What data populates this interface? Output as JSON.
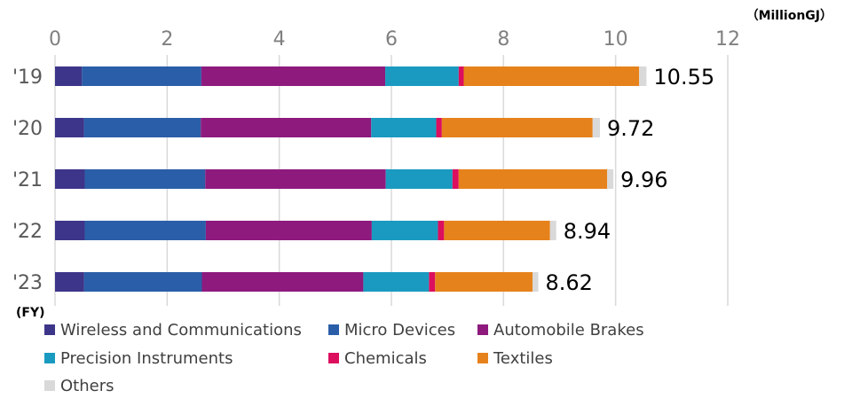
{
  "chart_data": {
    "type": "bar",
    "orientation": "horizontal",
    "stacked": true,
    "unit_label": "（MillionGJ）",
    "category_axis_label": "(FY)",
    "xlim": [
      0,
      12
    ],
    "x_ticks": [
      "0",
      "2",
      "4",
      "6",
      "8",
      "10",
      "12"
    ],
    "categories": [
      "'19",
      "'20",
      "'21",
      "'22",
      "'23"
    ],
    "totals": [
      "10.55",
      "9.72",
      "9.96",
      "8.94",
      "8.62"
    ],
    "grid": true,
    "legend_position": "bottom",
    "series": [
      {
        "name": "Wireless and Communications",
        "color": "#3d3589",
        "values": [
          0.48,
          0.52,
          0.53,
          0.53,
          0.52
        ]
      },
      {
        "name": "Micro Devices",
        "color": "#2b5ea8",
        "values": [
          2.13,
          2.08,
          2.15,
          2.16,
          2.1
        ]
      },
      {
        "name": "Automobile Brakes",
        "color": "#8e1a7e",
        "values": [
          3.28,
          3.04,
          3.22,
          2.96,
          2.88
        ]
      },
      {
        "name": "Precision Instruments",
        "color": "#1a9ac0",
        "values": [
          1.31,
          1.16,
          1.19,
          1.18,
          1.17
        ]
      },
      {
        "name": "Chemicals",
        "color": "#dc0e5e",
        "values": [
          0.09,
          0.1,
          0.11,
          0.11,
          0.11
        ]
      },
      {
        "name": "Textiles",
        "color": "#e6821c",
        "values": [
          3.13,
          2.69,
          2.65,
          1.89,
          1.74
        ]
      },
      {
        "name": "Others",
        "color": "#d9d9d9",
        "values": [
          0.13,
          0.13,
          0.11,
          0.11,
          0.1
        ]
      }
    ]
  }
}
